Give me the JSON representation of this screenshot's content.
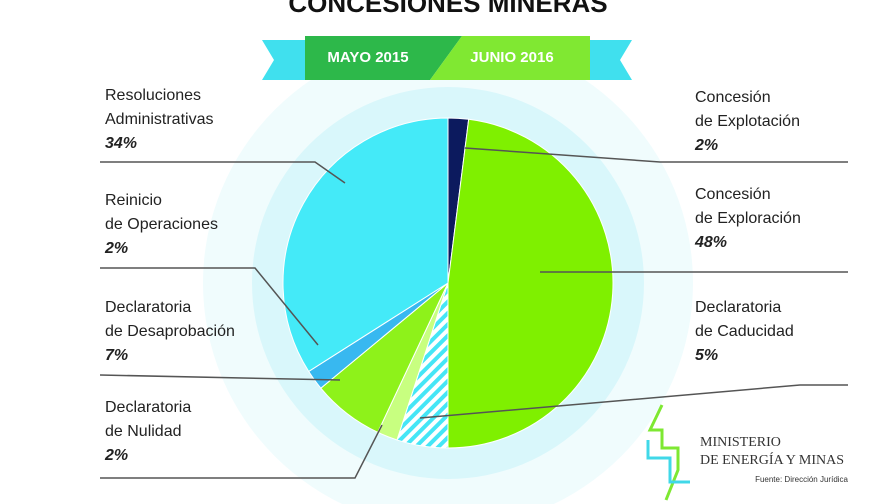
{
  "chart_data": {
    "type": "pie",
    "title": "CONCESIONES MINERAS",
    "period_start": "MAYO 2015",
    "period_end": "JUNIO 2016",
    "categories": [
      [
        "Concesión",
        "de Explotación"
      ],
      [
        "Concesión",
        "de Exploración"
      ],
      [
        "Declaratoria",
        "de Caducidad"
      ],
      [
        "Declaratoria",
        "de Nulidad"
      ],
      [
        "Declaratoria",
        "de Desaprobación"
      ],
      [
        "Reinicio",
        "de Operaciones"
      ],
      [
        "Resoluciones",
        "Administrativas"
      ]
    ],
    "values": [
      2,
      48,
      5,
      2,
      7,
      2,
      34
    ],
    "value_labels": [
      "2%",
      "48%",
      "5%",
      "2%",
      "7%",
      "2%",
      "34%"
    ],
    "colors": [
      "#0c1a5e",
      "#7ff000",
      "#45e6f6",
      "#c8ff80",
      "#8ef21a",
      "#38b8f0",
      "#44eaf8"
    ],
    "hatched": [
      false,
      false,
      true,
      false,
      false,
      false,
      false
    ],
    "logo": [
      "MINISTERIO",
      "DE ENERGÍA Y MINAS"
    ],
    "source": "Fuente: Dirección Jurídica"
  }
}
